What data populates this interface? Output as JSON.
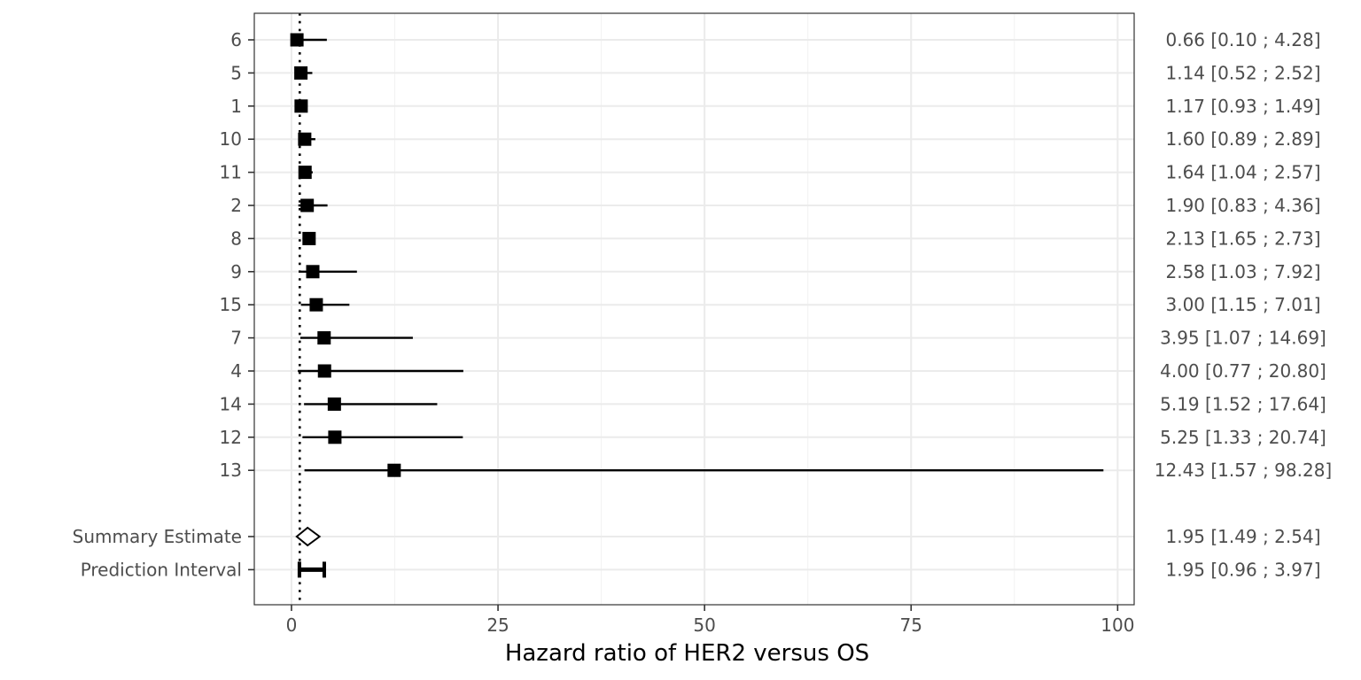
{
  "chart_data": {
    "type": "forest",
    "xlabel": "Hazard ratio of HER2 versus OS",
    "ylabel": "",
    "xlim": [
      -4.5,
      102
    ],
    "x_ticks": [
      0,
      25,
      50,
      75,
      100
    ],
    "reference_line": 1,
    "grid": true,
    "studies": [
      {
        "label": "6",
        "hr": 0.66,
        "lower": 0.1,
        "upper": 4.28,
        "text": "0.66 [0.10 ;  4.28]"
      },
      {
        "label": "5",
        "hr": 1.14,
        "lower": 0.52,
        "upper": 2.52,
        "text": "1.14 [0.52 ;  2.52]"
      },
      {
        "label": "1",
        "hr": 1.17,
        "lower": 0.93,
        "upper": 1.49,
        "text": "1.17 [0.93 ;  1.49]"
      },
      {
        "label": "10",
        "hr": 1.6,
        "lower": 0.89,
        "upper": 2.89,
        "text": "1.60 [0.89 ;  2.89]"
      },
      {
        "label": "11",
        "hr": 1.64,
        "lower": 1.04,
        "upper": 2.57,
        "text": "1.64 [1.04 ;  2.57]"
      },
      {
        "label": "2",
        "hr": 1.9,
        "lower": 0.83,
        "upper": 4.36,
        "text": "1.90 [0.83 ;  4.36]"
      },
      {
        "label": "8",
        "hr": 2.13,
        "lower": 1.65,
        "upper": 2.73,
        "text": "2.13 [1.65 ;  2.73]"
      },
      {
        "label": "9",
        "hr": 2.58,
        "lower": 1.03,
        "upper": 7.92,
        "text": "2.58 [1.03 ;  7.92]"
      },
      {
        "label": "15",
        "hr": 3.0,
        "lower": 1.15,
        "upper": 7.01,
        "text": "3.00 [1.15 ;  7.01]"
      },
      {
        "label": "7",
        "hr": 3.95,
        "lower": 1.07,
        "upper": 14.69,
        "text": "3.95 [1.07 ; 14.69]"
      },
      {
        "label": "4",
        "hr": 4.0,
        "lower": 0.77,
        "upper": 20.8,
        "text": "4.00 [0.77 ; 20.80]"
      },
      {
        "label": "14",
        "hr": 5.19,
        "lower": 1.52,
        "upper": 17.64,
        "text": "5.19 [1.52 ; 17.64]"
      },
      {
        "label": "12",
        "hr": 5.25,
        "lower": 1.33,
        "upper": 20.74,
        "text": "5.25 [1.33 ; 20.74]"
      },
      {
        "label": "13",
        "hr": 12.43,
        "lower": 1.57,
        "upper": 98.28,
        "text": "12.43 [1.57 ; 98.28]"
      }
    ],
    "summary": {
      "label": "Summary Estimate",
      "hr": 1.95,
      "lower": 1.49,
      "upper": 2.54,
      "text": "1.95 [1.49 ;  2.54]"
    },
    "prediction": {
      "label": "Prediction Interval",
      "hr": 1.95,
      "lower": 0.96,
      "upper": 3.97,
      "text": "1.95 [0.96 ;  3.97]"
    }
  }
}
